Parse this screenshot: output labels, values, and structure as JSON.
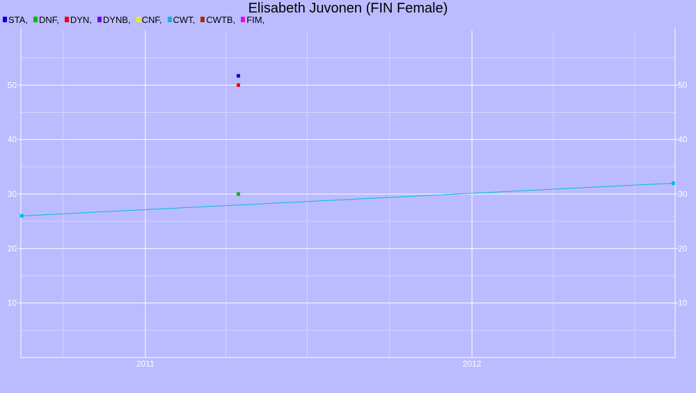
{
  "chart_data": {
    "type": "scatter",
    "title": "Elisabeth Juvonen (FIN Female)",
    "xlabel": "",
    "ylabel": "",
    "x_ticks": [
      "2011",
      "2012"
    ],
    "x_range": [
      "2010-08-15",
      "2012-08-15"
    ],
    "y_ticks": [
      10,
      20,
      30,
      40,
      50
    ],
    "ylim": [
      0,
      60
    ],
    "grid": true,
    "legend": "top-left",
    "legend_items": [
      {
        "label": "STA,",
        "color": "#0000dd"
      },
      {
        "label": "DNF,",
        "color": "#00bb00"
      },
      {
        "label": "DYN,",
        "color": "#ee0000"
      },
      {
        "label": "DYNB,",
        "color": "#7700ee"
      },
      {
        "label": "CNF,",
        "color": "#eeee00"
      },
      {
        "label": "CWT,",
        "color": "#00bbdd"
      },
      {
        "label": "CWTB,",
        "color": "#993300"
      },
      {
        "label": "FIM,",
        "color": "#ee00ee"
      }
    ],
    "series": [
      {
        "name": "STA",
        "color": "#0000dd",
        "points": [
          {
            "x": "2011-04-15",
            "y": 51.7
          }
        ]
      },
      {
        "name": "DNF",
        "color": "#00bb00",
        "points": [
          {
            "x": "2011-04-15",
            "y": 30
          }
        ]
      },
      {
        "name": "DYN",
        "color": "#ee0000",
        "points": [
          {
            "x": "2011-04-15",
            "y": 50
          }
        ]
      },
      {
        "name": "CWT",
        "color": "#00bbdd",
        "line": true,
        "points": [
          {
            "x": "2010-08-16",
            "y": 26
          },
          {
            "x": "2012-08-13",
            "y": 32
          }
        ]
      }
    ]
  }
}
